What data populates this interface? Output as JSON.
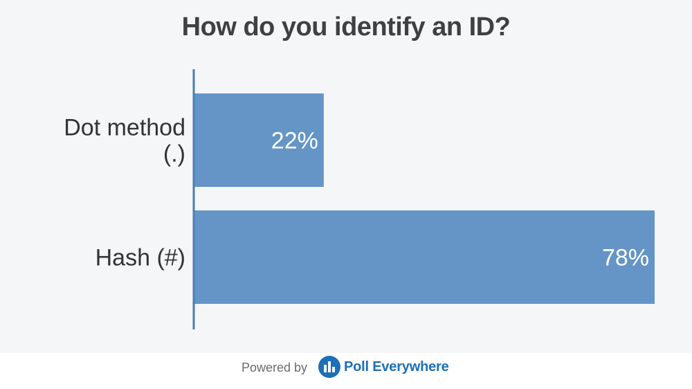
{
  "chart_data": {
    "type": "bar",
    "orientation": "horizontal",
    "title": "How do you identify an ID?",
    "categories": [
      "Dot method (.)",
      "Hash (#)"
    ],
    "category_lines": [
      [
        "Dot method",
        "(.)"
      ],
      [
        "Hash (#)"
      ]
    ],
    "values": [
      22,
      78
    ],
    "value_labels": [
      "22%",
      "78%"
    ],
    "xlim": [
      0,
      78
    ],
    "unit": "%",
    "bar_color": "#6495c6",
    "axis_color": "#4b7fb5",
    "grid": false
  },
  "footer": {
    "powered_by": "Powered by",
    "brand": "Poll Everywhere",
    "brand_color": "#1c6fb8"
  }
}
